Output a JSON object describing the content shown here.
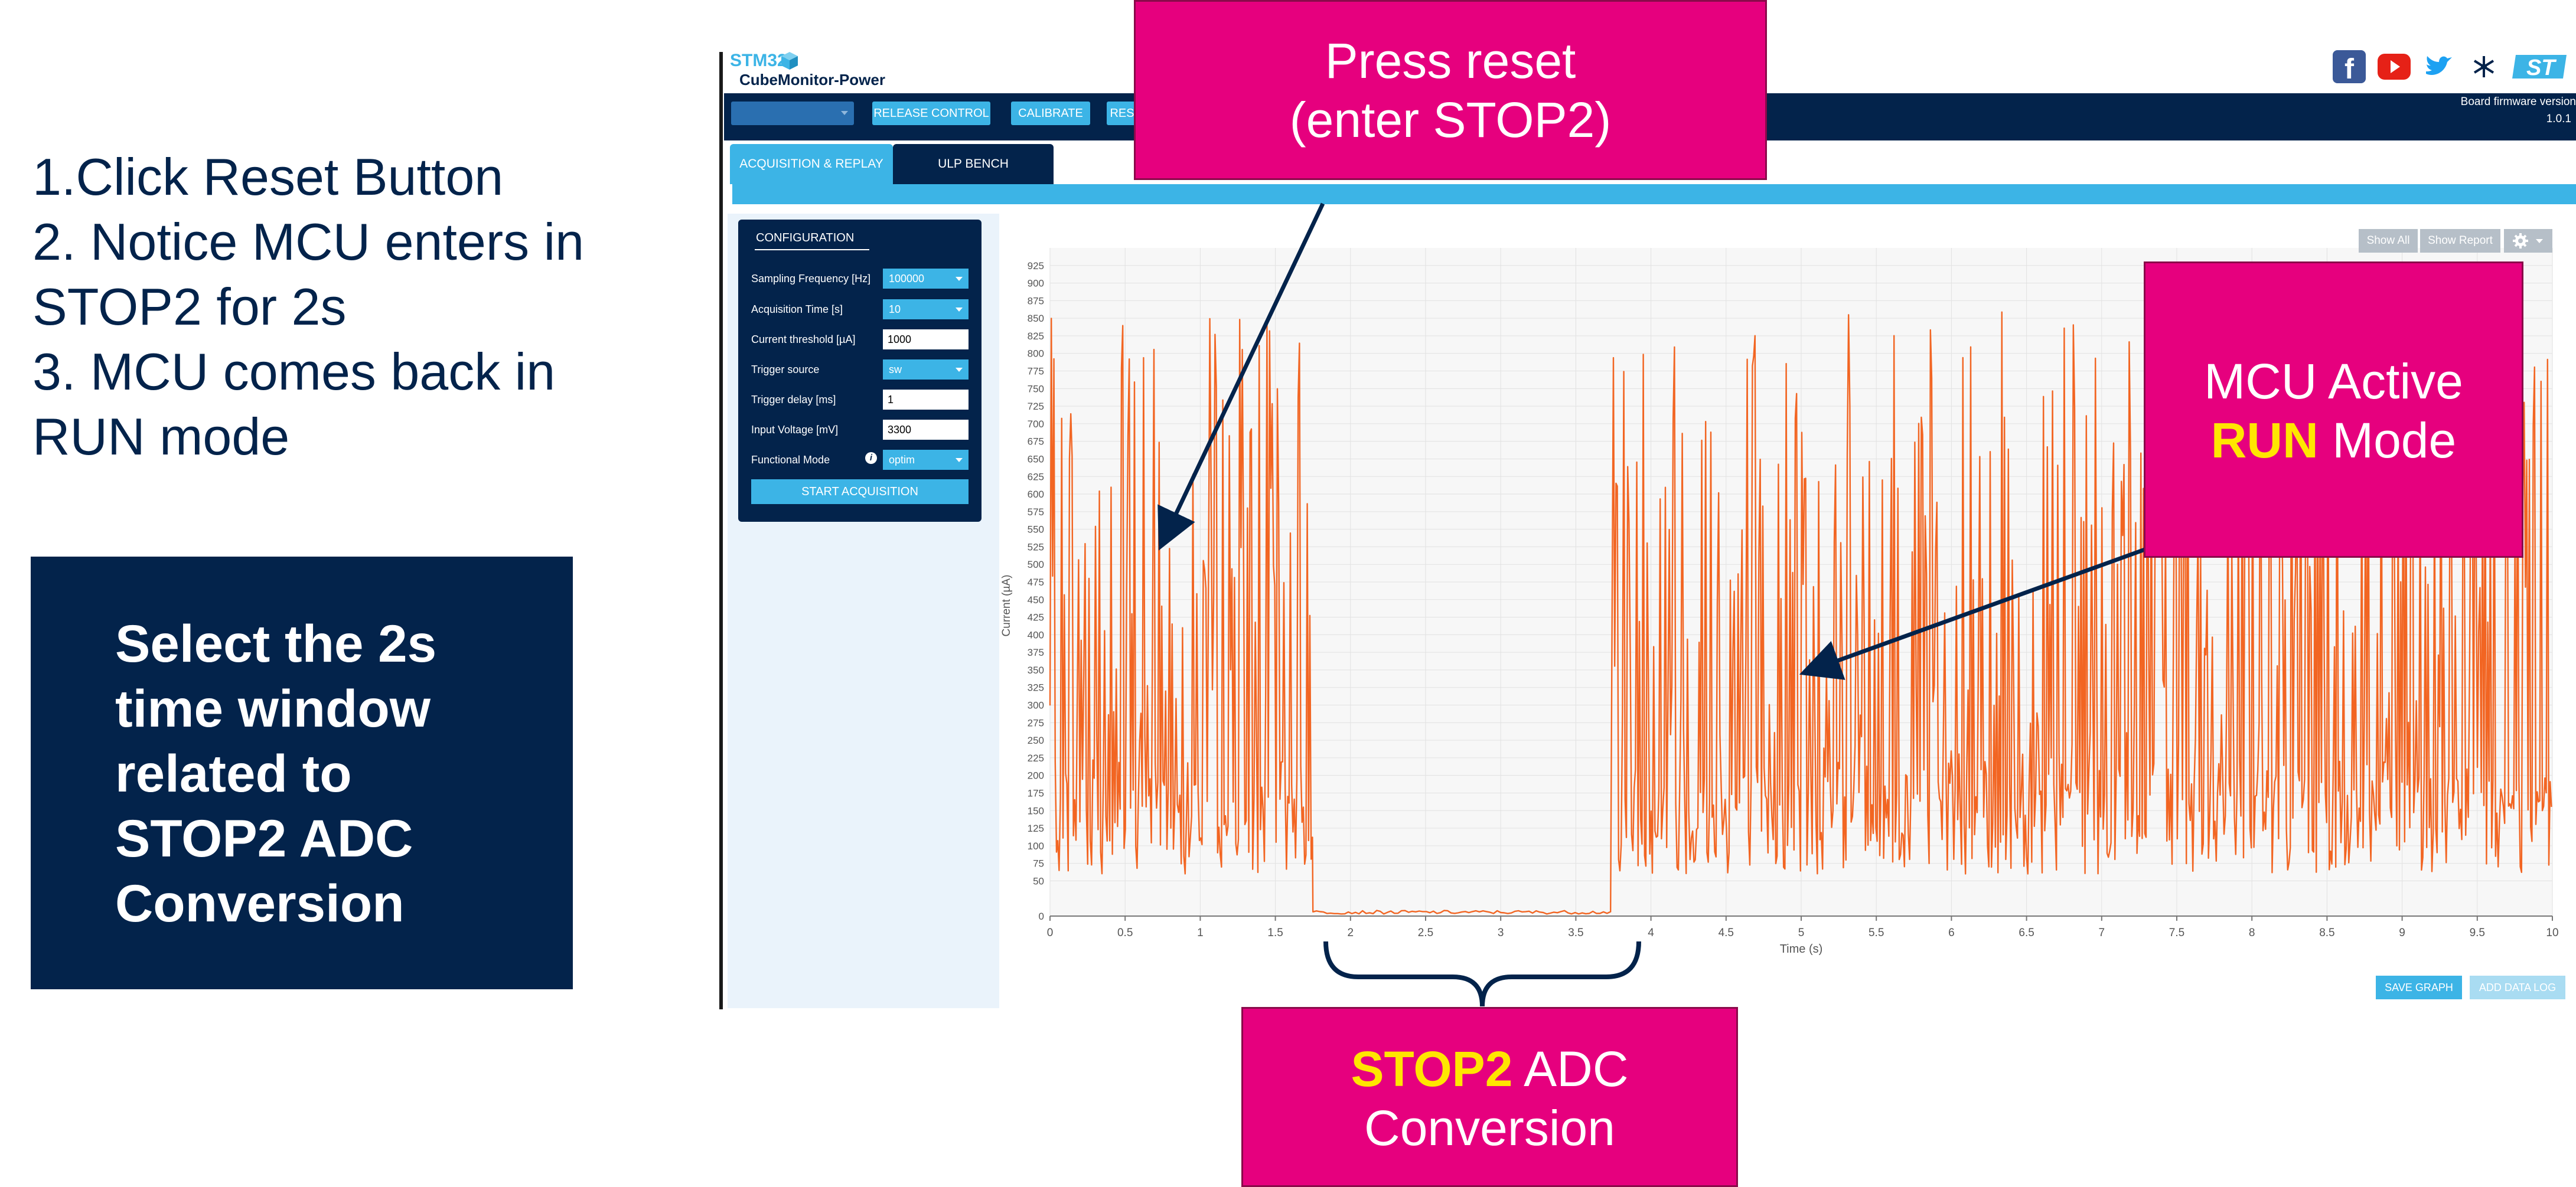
{
  "slide": {
    "steps": [
      "1.Click Reset Button",
      "2. Notice MCU enters in",
      "STOP2 for 2s",
      "3. MCU comes back in",
      "RUN mode"
    ],
    "tip_lines": [
      "Select the 2s",
      "time window",
      "related to",
      "STOP2 ADC",
      "Conversion"
    ]
  },
  "app": {
    "logo_top": "STM32",
    "logo_bottom": "CubeMonitor-Power",
    "social_icons": [
      "facebook-icon",
      "youtube-icon",
      "twitter-icon",
      "network-icon",
      "st-logo-icon"
    ],
    "toolbar": {
      "port_select": "",
      "release_control": "RELEASE CONTROL",
      "calibrate": "CALIBRATE",
      "reset": "RES"
    },
    "firmware_label": "Board firmware version",
    "firmware_version": "1.0.1",
    "tabs": [
      "ACQUISITION & REPLAY",
      "ULP BENCH"
    ],
    "config": {
      "title": "CONFIGURATION",
      "fields": [
        {
          "label": "Sampling Frequency [Hz]",
          "value": "100000",
          "kind": "select"
        },
        {
          "label": "Acquisition Time [s]",
          "value": "10",
          "kind": "select"
        },
        {
          "label": "Current threshold [µA]",
          "value": "1000",
          "kind": "input"
        },
        {
          "label": "Trigger source",
          "value": "sw",
          "kind": "select"
        },
        {
          "label": "Trigger delay [ms]",
          "value": "1",
          "kind": "input"
        },
        {
          "label": "Input Voltage [mV]",
          "value": "3300",
          "kind": "input"
        },
        {
          "label": "Functional Mode",
          "value": "optim",
          "kind": "select"
        }
      ],
      "start_button": "START ACQUISITION"
    },
    "graph_buttons": {
      "show_all": "Show All",
      "show_report": "Show Report"
    },
    "bottom_buttons": {
      "save_graph": "SAVE GRAPH",
      "add_data_log": "ADD DATA LOG"
    }
  },
  "callouts": {
    "reset": {
      "line1": "Press reset",
      "line2": "(enter STOP2)"
    },
    "run": {
      "line1": "MCU Active",
      "line2_highlight": "RUN",
      "line2_rest": " Mode"
    },
    "stop2": {
      "line1_highlight": "STOP2",
      "line1_rest": " ADC",
      "line2": "Conversion"
    }
  },
  "chart_data": {
    "type": "line",
    "xlabel": "Time (s)",
    "ylabel": "Current (µA)",
    "xlim": [
      0,
      10
    ],
    "ylim": [
      0,
      950
    ],
    "x_ticks": [
      0,
      0.5,
      1,
      1.5,
      2,
      2.5,
      3,
      3.5,
      4,
      4.5,
      5,
      5.5,
      6,
      6.5,
      7,
      7.5,
      8,
      8.5,
      9,
      9.5,
      10
    ],
    "y_ticks": [
      0,
      50,
      75,
      100,
      125,
      150,
      175,
      200,
      225,
      250,
      275,
      300,
      325,
      350,
      375,
      400,
      425,
      450,
      475,
      500,
      525,
      550,
      575,
      600,
      625,
      650,
      675,
      700,
      725,
      750,
      775,
      800,
      825,
      850,
      875,
      900,
      925
    ],
    "grid": true,
    "color": "#f26522",
    "segments": [
      {
        "name": "run",
        "x_start": 0,
        "x_end": 1.75,
        "min": 60,
        "max": 860
      },
      {
        "name": "stop2",
        "x_start": 1.75,
        "x_end": 3.75,
        "min": 3,
        "max": 8
      },
      {
        "name": "run",
        "x_start": 3.75,
        "x_end": 10,
        "min": 60,
        "max": 860
      }
    ]
  }
}
